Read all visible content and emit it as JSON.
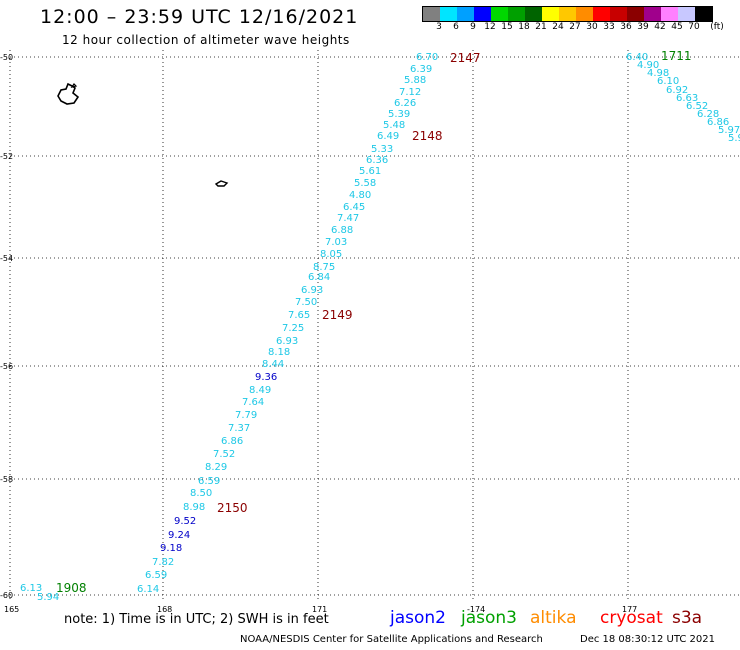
{
  "header": {
    "title": "12:00 – 23:59 UTC 12/16/2021",
    "subtitle": "12 hour collection of altimeter wave heights"
  },
  "legend": {
    "unit": "(ft)",
    "colors": [
      "#808080",
      "#00e5ff",
      "#00a0ff",
      "#0000ff",
      "#00d800",
      "#00a000",
      "#006400",
      "#ffff00",
      "#ffc800",
      "#ff8c00",
      "#ff0000",
      "#c80000",
      "#8b0000",
      "#a0008c",
      "#ff80ff",
      "#c8c8ff",
      "#000000"
    ],
    "labels": [
      "3",
      "6",
      "9",
      "12",
      "15",
      "18",
      "21",
      "24",
      "27",
      "30",
      "33",
      "36",
      "39",
      "42",
      "45",
      "70"
    ]
  },
  "axes": {
    "lat_labels": [
      "-50",
      "-52",
      "-54",
      "-56",
      "-58",
      "-60"
    ],
    "lon_labels": [
      "165",
      "168",
      "171",
      "-174",
      "177"
    ]
  },
  "map": {
    "lon_range": [
      165,
      180
    ],
    "lat_range": [
      -60,
      -50
    ],
    "grid": true
  },
  "tracks": {
    "main_cyan_values": [
      "6.70",
      "6.39",
      "5.88",
      "7.12",
      "6.26",
      "5.39",
      "5.48",
      "6.49",
      "5.33",
      "6.36",
      "5.61",
      "5.58",
      "4.80",
      "6.45",
      "7.47",
      "6.88",
      "7.03",
      "8.05",
      "8.75",
      "6.84",
      "6.93",
      "7.50",
      "7.65",
      "7.25",
      "6.93",
      "8.18",
      "8.44"
    ],
    "main_blue_1": "9.36",
    "main_cyan_values_2": [
      "8.49",
      "7.64",
      "7.79",
      "7.37",
      "6.86",
      "7.52",
      "8.29",
      "6.59",
      "8.50",
      "8.98"
    ],
    "main_blue_values": [
      "9.52",
      "9.24",
      "9.18"
    ],
    "main_cyan_values_3": [
      "7.82",
      "6.59",
      "6.14"
    ],
    "east_values": [
      "6.40",
      "4.90",
      "4.98",
      "6.10",
      "6.92",
      "6.63",
      "6.52",
      "6.28",
      "6.86",
      "5.97",
      "5.9"
    ],
    "sw_values": [
      "6.13",
      "5.94"
    ]
  },
  "time_labels": {
    "t2147": "2147",
    "t2148": "2148",
    "t2149": "2149",
    "t2150": "2150",
    "t1711": "1711",
    "t1908": "1908",
    "dark_red": "#8b0000",
    "green": "#008000"
  },
  "footer": {
    "note": "note: 1) Time is in UTC; 2) SWH is in feet",
    "satellites": [
      {
        "name": "jason2",
        "color": "#0000ff"
      },
      {
        "name": "jason3",
        "color": "#00a000"
      },
      {
        "name": "altika",
        "color": "#ff8c00"
      },
      {
        "name": "cryosat",
        "color": "#ff0000"
      },
      {
        "name": "s3a",
        "color": "#8b0000"
      }
    ],
    "credit": "NOAA/NESDIS Center for Satellite Applications and Research",
    "timestamp": "Dec 18 08:30:12 UTC 2021"
  }
}
